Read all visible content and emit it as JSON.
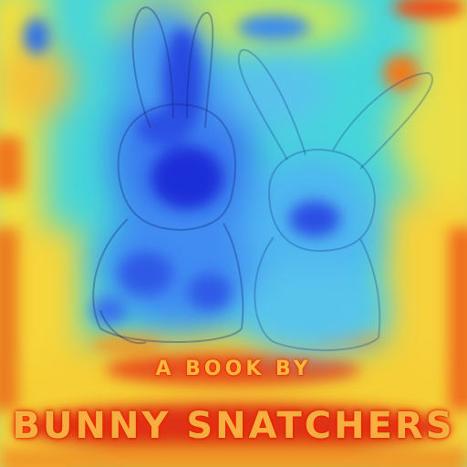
{
  "scene": {
    "description_label": "",
    "colors": {
      "cold": "#1a2bd8",
      "cool": "#2f8cf0",
      "cyan": "#3fd4e0",
      "warm": "#f4e13a",
      "hot": "#f07a1a",
      "hottest": "#d81e10"
    }
  },
  "poster": {
    "subtitle": "A BOOK BY",
    "title": "BUNNY SNATCHERS"
  }
}
